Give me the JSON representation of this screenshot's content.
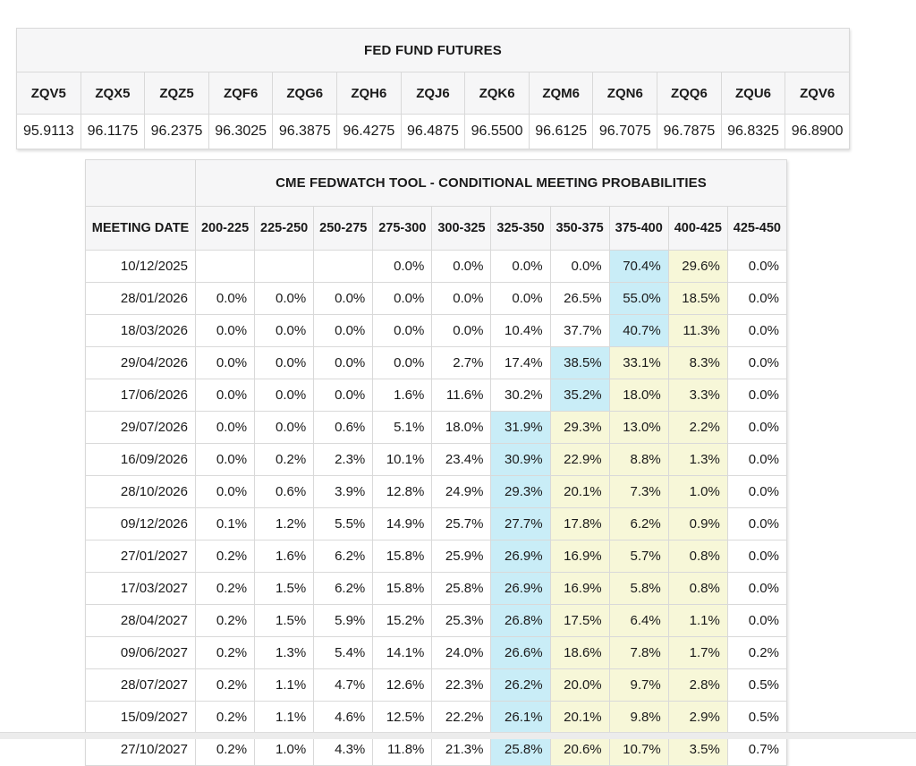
{
  "colors": {
    "highlight_blue": "#c9edf7",
    "highlight_yellow": "#f7f7d8",
    "header_bg": "#f6f6f7",
    "grid_border": "#d9d9d9",
    "outer_border": "#bfbfbf",
    "page_bg": "#ffffff",
    "bottom_bar": "#ececec"
  },
  "futures_table": {
    "title": "FED FUND FUTURES",
    "symbols": [
      "ZQV5",
      "ZQX5",
      "ZQZ5",
      "ZQF6",
      "ZQG6",
      "ZQH6",
      "ZQJ6",
      "ZQK6",
      "ZQM6",
      "ZQN6",
      "ZQQ6",
      "ZQU6",
      "ZQV6"
    ],
    "prices": [
      "95.9113",
      "96.1175",
      "96.2375",
      "96.3025",
      "96.3875",
      "96.4275",
      "96.4875",
      "96.5500",
      "96.6125",
      "96.7075",
      "96.7875",
      "96.8325",
      "96.8900"
    ]
  },
  "fedwatch_table": {
    "title": "CME FEDWATCH TOOL - CONDITIONAL MEETING PROBABILITIES",
    "date_header": "MEETING DATE",
    "rate_headers": [
      "200-225",
      "225-250",
      "250-275",
      "275-300",
      "300-325",
      "325-350",
      "350-375",
      "375-400",
      "400-425",
      "425-450"
    ],
    "rows": [
      {
        "date": "10/12/2025",
        "cells": [
          "",
          "",
          "",
          "0.0%",
          "0.0%",
          "0.0%",
          "0.0%",
          "70.4%",
          "29.6%",
          "0.0%"
        ],
        "blue": 7,
        "yellow": [
          8
        ]
      },
      {
        "date": "28/01/2026",
        "cells": [
          "0.0%",
          "0.0%",
          "0.0%",
          "0.0%",
          "0.0%",
          "0.0%",
          "26.5%",
          "55.0%",
          "18.5%",
          "0.0%"
        ],
        "blue": 7,
        "yellow": [
          8
        ]
      },
      {
        "date": "18/03/2026",
        "cells": [
          "0.0%",
          "0.0%",
          "0.0%",
          "0.0%",
          "0.0%",
          "10.4%",
          "37.7%",
          "40.7%",
          "11.3%",
          "0.0%"
        ],
        "blue": 7,
        "yellow": [
          8
        ]
      },
      {
        "date": "29/04/2026",
        "cells": [
          "0.0%",
          "0.0%",
          "0.0%",
          "0.0%",
          "2.7%",
          "17.4%",
          "38.5%",
          "33.1%",
          "8.3%",
          "0.0%"
        ],
        "blue": 6,
        "yellow": [
          7,
          8
        ]
      },
      {
        "date": "17/06/2026",
        "cells": [
          "0.0%",
          "0.0%",
          "0.0%",
          "1.6%",
          "11.6%",
          "30.2%",
          "35.2%",
          "18.0%",
          "3.3%",
          "0.0%"
        ],
        "blue": 6,
        "yellow": [
          7,
          8
        ]
      },
      {
        "date": "29/07/2026",
        "cells": [
          "0.0%",
          "0.0%",
          "0.6%",
          "5.1%",
          "18.0%",
          "31.9%",
          "29.3%",
          "13.0%",
          "2.2%",
          "0.0%"
        ],
        "blue": 5,
        "yellow": [
          6,
          7,
          8
        ]
      },
      {
        "date": "16/09/2026",
        "cells": [
          "0.0%",
          "0.2%",
          "2.3%",
          "10.1%",
          "23.4%",
          "30.9%",
          "22.9%",
          "8.8%",
          "1.3%",
          "0.0%"
        ],
        "blue": 5,
        "yellow": [
          6,
          7,
          8
        ]
      },
      {
        "date": "28/10/2026",
        "cells": [
          "0.0%",
          "0.6%",
          "3.9%",
          "12.8%",
          "24.9%",
          "29.3%",
          "20.1%",
          "7.3%",
          "1.0%",
          "0.0%"
        ],
        "blue": 5,
        "yellow": [
          6,
          7,
          8
        ]
      },
      {
        "date": "09/12/2026",
        "cells": [
          "0.1%",
          "1.2%",
          "5.5%",
          "14.9%",
          "25.7%",
          "27.7%",
          "17.8%",
          "6.2%",
          "0.9%",
          "0.0%"
        ],
        "blue": 5,
        "yellow": [
          6,
          7,
          8
        ]
      },
      {
        "date": "27/01/2027",
        "cells": [
          "0.2%",
          "1.6%",
          "6.2%",
          "15.8%",
          "25.9%",
          "26.9%",
          "16.9%",
          "5.7%",
          "0.8%",
          "0.0%"
        ],
        "blue": 5,
        "yellow": [
          6,
          7,
          8
        ]
      },
      {
        "date": "17/03/2027",
        "cells": [
          "0.2%",
          "1.5%",
          "6.2%",
          "15.8%",
          "25.8%",
          "26.9%",
          "16.9%",
          "5.8%",
          "0.8%",
          "0.0%"
        ],
        "blue": 5,
        "yellow": [
          6,
          7,
          8
        ]
      },
      {
        "date": "28/04/2027",
        "cells": [
          "0.2%",
          "1.5%",
          "5.9%",
          "15.2%",
          "25.3%",
          "26.8%",
          "17.5%",
          "6.4%",
          "1.1%",
          "0.0%"
        ],
        "blue": 5,
        "yellow": [
          6,
          7,
          8
        ]
      },
      {
        "date": "09/06/2027",
        "cells": [
          "0.2%",
          "1.3%",
          "5.4%",
          "14.1%",
          "24.0%",
          "26.6%",
          "18.6%",
          "7.8%",
          "1.7%",
          "0.2%"
        ],
        "blue": 5,
        "yellow": [
          6,
          7,
          8
        ]
      },
      {
        "date": "28/07/2027",
        "cells": [
          "0.2%",
          "1.1%",
          "4.7%",
          "12.6%",
          "22.3%",
          "26.2%",
          "20.0%",
          "9.7%",
          "2.8%",
          "0.5%"
        ],
        "blue": 5,
        "yellow": [
          6,
          7,
          8
        ]
      },
      {
        "date": "15/09/2027",
        "cells": [
          "0.2%",
          "1.1%",
          "4.6%",
          "12.5%",
          "22.2%",
          "26.1%",
          "20.1%",
          "9.8%",
          "2.9%",
          "0.5%"
        ],
        "blue": 5,
        "yellow": [
          6,
          7,
          8
        ]
      },
      {
        "date": "27/10/2027",
        "cells": [
          "0.2%",
          "1.0%",
          "4.3%",
          "11.8%",
          "21.3%",
          "25.8%",
          "20.6%",
          "10.7%",
          "3.5%",
          "0.7%"
        ],
        "blue": 5,
        "yellow": [
          6,
          7,
          8
        ]
      }
    ]
  }
}
